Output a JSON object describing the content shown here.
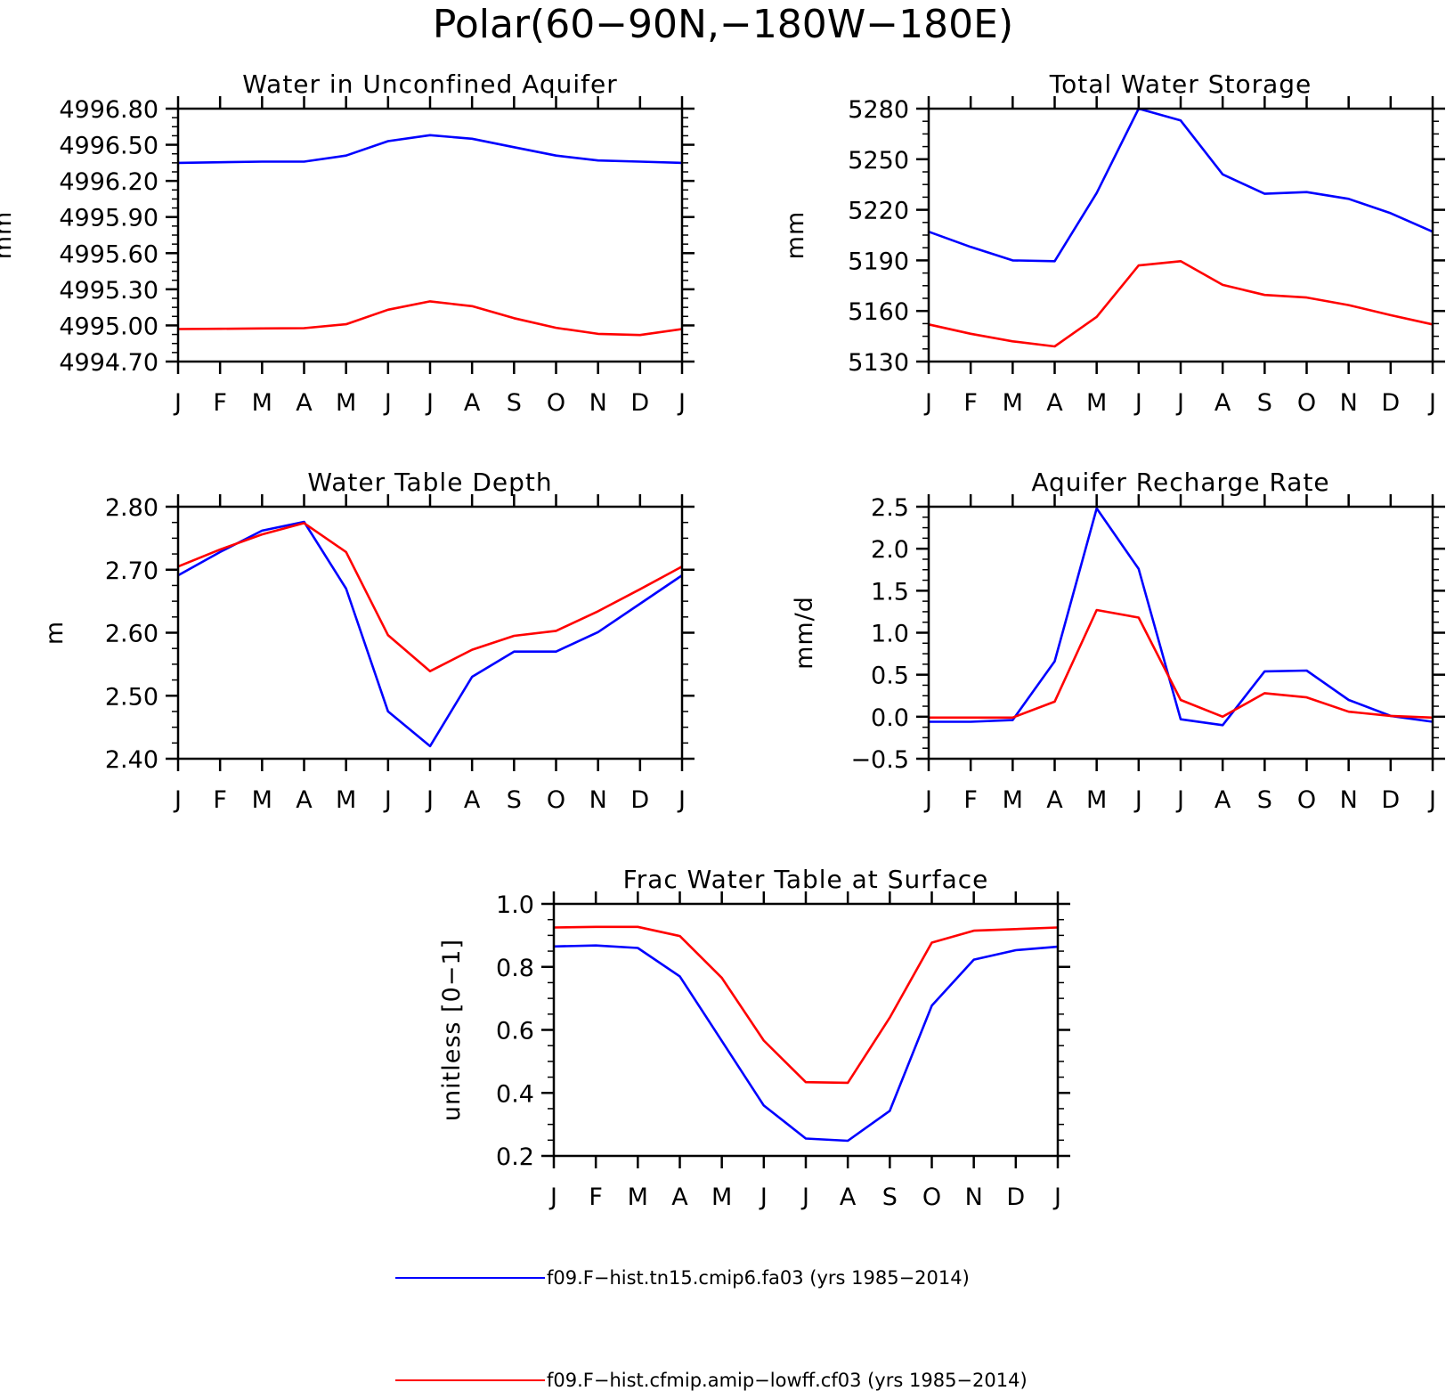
{
  "figure": {
    "title": "Polar(60−90N,−180W−180E)",
    "colors": {
      "run1": "#0000ff",
      "run2": "#ff0000"
    }
  },
  "legend": [
    {
      "label": "f09.F−hist.tn15.cmip6.fa03 (yrs 1985−2014)",
      "color": "#0000ff"
    },
    {
      "label": "f09.F−hist.cfmip.amip−lowff.cf03 (yrs 1985−2014)",
      "color": "#ff0000"
    }
  ],
  "chart_data": [
    {
      "type": "line",
      "title": "Water in Unconfined Aquifer",
      "ylabel": "mm",
      "x": [
        "J",
        "F",
        "M",
        "A",
        "M",
        "J",
        "J",
        "A",
        "S",
        "O",
        "N",
        "D",
        "J"
      ],
      "ylim": [
        4994.7,
        4996.8
      ],
      "yticks": [
        "4994.70",
        "4995.00",
        "4995.30",
        "4995.60",
        "4995.90",
        "4996.20",
        "4996.50",
        "4996.80"
      ],
      "series": [
        {
          "color": "#0000ff",
          "values": [
            4996.35,
            4996.355,
            4996.36,
            4996.36,
            4996.41,
            4996.53,
            4996.58,
            4996.55,
            4996.48,
            4996.41,
            4996.37,
            4996.36,
            4996.35
          ]
        },
        {
          "color": "#ff0000",
          "values": [
            4994.97,
            4994.972,
            4994.975,
            4994.977,
            4995.01,
            4995.13,
            4995.2,
            4995.16,
            4995.06,
            4994.98,
            4994.93,
            4994.92,
            4994.97
          ]
        }
      ]
    },
    {
      "type": "line",
      "title": "Total Water Storage",
      "ylabel": "mm",
      "x": [
        "J",
        "F",
        "M",
        "A",
        "M",
        "J",
        "J",
        "A",
        "S",
        "O",
        "N",
        "D",
        "J"
      ],
      "ylim": [
        5130,
        5280
      ],
      "yticks": [
        "5130",
        "5160",
        "5190",
        "5220",
        "5250",
        "5280"
      ],
      "series": [
        {
          "color": "#0000ff",
          "values": [
            5207,
            5198,
            5190,
            5189.5,
            5230,
            5280,
            5273,
            5241,
            5229.5,
            5230.5,
            5226.5,
            5218,
            5207
          ]
        },
        {
          "color": "#ff0000",
          "values": [
            5152,
            5146.5,
            5142,
            5139,
            5156.5,
            5187,
            5189.5,
            5175.5,
            5169.5,
            5168,
            5163.5,
            5157.5,
            5152
          ]
        }
      ]
    },
    {
      "type": "line",
      "title": "Water Table Depth",
      "ylabel": "m",
      "x": [
        "J",
        "F",
        "M",
        "A",
        "M",
        "J",
        "J",
        "A",
        "S",
        "O",
        "N",
        "D",
        "J"
      ],
      "ylim": [
        2.4,
        2.8
      ],
      "yticks": [
        "2.40",
        "2.50",
        "2.60",
        "2.70",
        "2.80"
      ],
      "series": [
        {
          "color": "#0000ff",
          "values": [
            2.691,
            2.728,
            2.762,
            2.776,
            2.67,
            2.475,
            2.42,
            2.53,
            2.57,
            2.57,
            2.601,
            2.646,
            2.691
          ]
        },
        {
          "color": "#ff0000",
          "values": [
            2.705,
            2.732,
            2.756,
            2.774,
            2.728,
            2.596,
            2.539,
            2.573,
            2.595,
            2.603,
            2.634,
            2.669,
            2.705
          ]
        }
      ]
    },
    {
      "type": "line",
      "title": "Aquifer Recharge Rate",
      "ylabel": "mm/d",
      "x": [
        "J",
        "F",
        "M",
        "A",
        "M",
        "J",
        "J",
        "A",
        "S",
        "O",
        "N",
        "D",
        "J"
      ],
      "ylim": [
        -0.5,
        2.5
      ],
      "yticks": [
        "−0.5",
        "0.0",
        "0.5",
        "1.0",
        "1.5",
        "2.0",
        "2.5"
      ],
      "series": [
        {
          "color": "#0000ff",
          "values": [
            -0.06,
            -0.06,
            -0.04,
            0.66,
            2.48,
            1.76,
            -0.03,
            -0.1,
            0.54,
            0.55,
            0.2,
            0.01,
            -0.06
          ]
        },
        {
          "color": "#ff0000",
          "values": [
            -0.01,
            -0.01,
            -0.01,
            0.18,
            1.27,
            1.18,
            0.2,
            0.0,
            0.28,
            0.23,
            0.06,
            0.01,
            -0.01
          ]
        }
      ]
    },
    {
      "type": "line",
      "title": "Frac Water Table at Surface",
      "ylabel": "unitless [0−1]",
      "x": [
        "J",
        "F",
        "M",
        "A",
        "M",
        "J",
        "J",
        "A",
        "S",
        "O",
        "N",
        "D",
        "J"
      ],
      "ylim": [
        0.2,
        1.0
      ],
      "yticks": [
        "0.2",
        "0.4",
        "0.6",
        "0.8",
        "1.0"
      ],
      "series": [
        {
          "color": "#0000ff",
          "values": [
            0.865,
            0.868,
            0.86,
            0.77,
            0.565,
            0.36,
            0.255,
            0.248,
            0.343,
            0.677,
            0.823,
            0.853,
            0.864
          ]
        },
        {
          "color": "#ff0000",
          "values": [
            0.925,
            0.927,
            0.927,
            0.898,
            0.765,
            0.566,
            0.434,
            0.432,
            0.639,
            0.877,
            0.915,
            0.92,
            0.925
          ]
        }
      ]
    }
  ]
}
